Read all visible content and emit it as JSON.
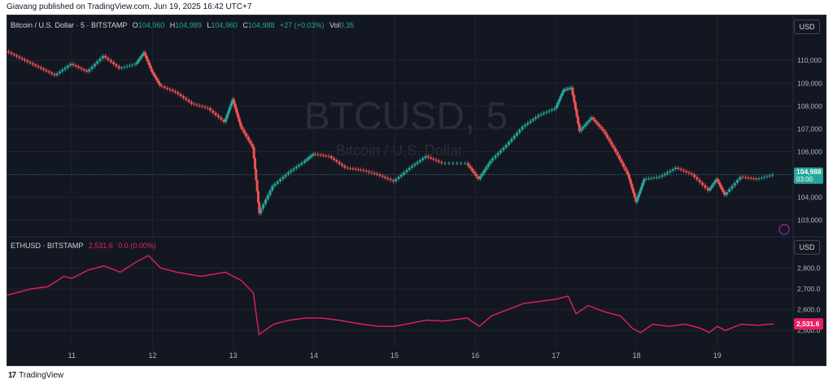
{
  "publish_line": "Giavang published on TradingView.com, Jun 19, 2025 16:42 UTC+7",
  "footer": {
    "logo": "17",
    "brand": "TradingView"
  },
  "currency": "USD",
  "colors": {
    "bg": "#131722",
    "grid": "#1f232e",
    "up": "#26a69a",
    "down": "#ef5350",
    "eth": "#e91e63",
    "text": "#b2b5be"
  },
  "main_pane": {
    "symbol": "Bitcoin / U.S. Dollar · 5 · BITSTAMP",
    "o_label": "O",
    "o": "104,960",
    "h_label": "H",
    "h": "104,989",
    "l_label": "L",
    "l": "104,960",
    "c_label": "C",
    "c": "104,988",
    "change": "+27 (+0.03%)",
    "vol_label": "Vol",
    "vol": "0.35",
    "watermark_1": "BTCUSD, 5",
    "watermark_2": "Bitcoin / U.S. Dollar",
    "last_price": "104,988",
    "countdown": "03:00"
  },
  "eth_pane": {
    "symbol": "ETHUSD · BITSTAMP",
    "value": "2,531.6",
    "change": "0.0 (0.00%)",
    "last_price": "2,531.6"
  },
  "chart_data": [
    {
      "type": "line",
      "title": "Bitcoin / U.S. Dollar · 5 · BITSTAMP",
      "series": [
        {
          "name": "BTCUSD",
          "values": [
            [
              10.2,
              110400
            ],
            [
              10.4,
              110050
            ],
            [
              10.6,
              109700
            ],
            [
              10.8,
              109350
            ],
            [
              11.0,
              109850
            ],
            [
              11.2,
              109500
            ],
            [
              11.4,
              110200
            ],
            [
              11.6,
              109650
            ],
            [
              11.8,
              109850
            ],
            [
              11.9,
              110350
            ],
            [
              12.0,
              109500
            ],
            [
              12.1,
              108900
            ],
            [
              12.3,
              108600
            ],
            [
              12.5,
              108100
            ],
            [
              12.7,
              107900
            ],
            [
              12.9,
              107300
            ],
            [
              13.0,
              108300
            ],
            [
              13.1,
              107100
            ],
            [
              13.25,
              106200
            ],
            [
              13.33,
              103300
            ],
            [
              13.5,
              104500
            ],
            [
              13.7,
              105100
            ],
            [
              13.9,
              105600
            ],
            [
              14.0,
              105900
            ],
            [
              14.2,
              105800
            ],
            [
              14.4,
              105300
            ],
            [
              14.6,
              105200
            ],
            [
              14.8,
              105000
            ],
            [
              15.0,
              104700
            ],
            [
              15.2,
              105300
            ],
            [
              15.4,
              105800
            ],
            [
              15.6,
              105500
            ],
            [
              15.9,
              105500
            ],
            [
              16.05,
              104800
            ],
            [
              16.2,
              105600
            ],
            [
              16.4,
              106300
            ],
            [
              16.6,
              107100
            ],
            [
              16.8,
              107600
            ],
            [
              17.0,
              107900
            ],
            [
              17.1,
              108700
            ],
            [
              17.2,
              108800
            ],
            [
              17.3,
              106900
            ],
            [
              17.45,
              107500
            ],
            [
              17.6,
              106900
            ],
            [
              17.75,
              106000
            ],
            [
              17.9,
              105000
            ],
            [
              18.0,
              103800
            ],
            [
              18.1,
              104800
            ],
            [
              18.3,
              104900
            ],
            [
              18.5,
              105300
            ],
            [
              18.7,
              105000
            ],
            [
              18.9,
              104300
            ],
            [
              19.0,
              104800
            ],
            [
              19.1,
              104100
            ],
            [
              19.3,
              104900
            ],
            [
              19.5,
              104800
            ],
            [
              19.7,
              104988
            ]
          ]
        }
      ],
      "ylabel": "",
      "xlabel": "",
      "x_ticks": [
        "11",
        "12",
        "13",
        "14",
        "15",
        "16",
        "17",
        "18",
        "19"
      ],
      "y_ticks": [
        "110,000",
        "109,000",
        "108,000",
        "107,000",
        "106,000",
        "105,000",
        "104,000",
        "103,000"
      ],
      "ylim": [
        102700,
        110900
      ],
      "xlim": [
        10.2,
        19.9
      ],
      "grid": true
    },
    {
      "type": "line",
      "title": "ETHUSD · BITSTAMP",
      "series": [
        {
          "name": "ETHUSD",
          "values": [
            [
              10.2,
              2670
            ],
            [
              10.5,
              2700
            ],
            [
              10.7,
              2710
            ],
            [
              10.9,
              2760
            ],
            [
              11.0,
              2750
            ],
            [
              11.2,
              2790
            ],
            [
              11.4,
              2810
            ],
            [
              11.6,
              2780
            ],
            [
              11.8,
              2830
            ],
            [
              11.95,
              2860
            ],
            [
              12.1,
              2800
            ],
            [
              12.3,
              2780
            ],
            [
              12.6,
              2760
            ],
            [
              12.9,
              2780
            ],
            [
              13.1,
              2740
            ],
            [
              13.25,
              2680
            ],
            [
              13.32,
              2480
            ],
            [
              13.5,
              2530
            ],
            [
              13.7,
              2550
            ],
            [
              13.9,
              2560
            ],
            [
              14.1,
              2560
            ],
            [
              14.3,
              2550
            ],
            [
              14.6,
              2530
            ],
            [
              14.8,
              2520
            ],
            [
              15.0,
              2520
            ],
            [
              15.2,
              2535
            ],
            [
              15.4,
              2550
            ],
            [
              15.6,
              2545
            ],
            [
              15.9,
              2560
            ],
            [
              16.05,
              2520
            ],
            [
              16.2,
              2570
            ],
            [
              16.4,
              2600
            ],
            [
              16.6,
              2630
            ],
            [
              16.8,
              2640
            ],
            [
              17.0,
              2650
            ],
            [
              17.15,
              2665
            ],
            [
              17.25,
              2580
            ],
            [
              17.4,
              2620
            ],
            [
              17.6,
              2590
            ],
            [
              17.8,
              2570
            ],
            [
              17.95,
              2510
            ],
            [
              18.05,
              2490
            ],
            [
              18.2,
              2530
            ],
            [
              18.4,
              2520
            ],
            [
              18.6,
              2530
            ],
            [
              18.8,
              2510
            ],
            [
              18.9,
              2490
            ],
            [
              19.0,
              2520
            ],
            [
              19.1,
              2500
            ],
            [
              19.3,
              2530
            ],
            [
              19.5,
              2525
            ],
            [
              19.7,
              2531.6
            ]
          ]
        }
      ],
      "ylabel": "",
      "xlabel": "",
      "y_ticks": [
        "2,800.0",
        "2,700.0",
        "2,600.0",
        "2,500.0"
      ],
      "ylim": [
        2450,
        2880
      ],
      "xlim": [
        10.2,
        19.9
      ],
      "grid": true
    }
  ]
}
